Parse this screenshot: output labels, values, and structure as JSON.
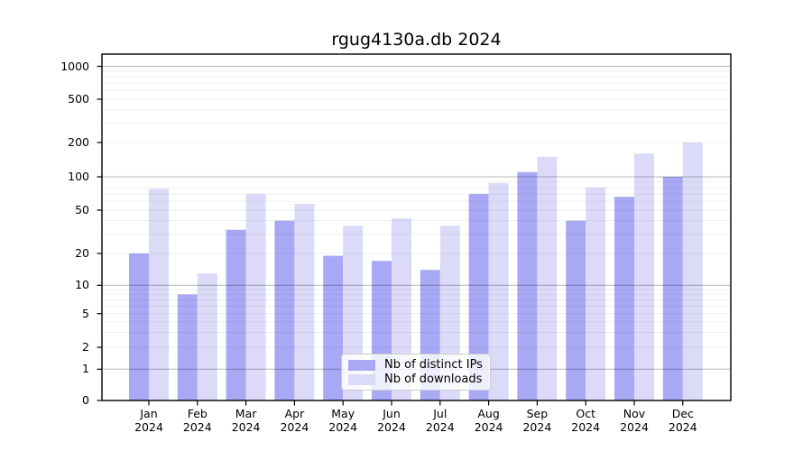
{
  "chart_data": {
    "type": "bar",
    "title": "rgug4130a.db 2024",
    "categories": [
      "Jan",
      "Feb",
      "Mar",
      "Apr",
      "May",
      "Jun",
      "Jul",
      "Aug",
      "Sep",
      "Oct",
      "Nov",
      "Dec"
    ],
    "x_year_label": "2024",
    "series": [
      {
        "name": "Nb of distinct IPs",
        "color": "#a8a8f5",
        "values": [
          20,
          8,
          33,
          40,
          19,
          17,
          14,
          70,
          110,
          40,
          66,
          100
        ]
      },
      {
        "name": "Nb of downloads",
        "color": "#dbdbf9",
        "values": [
          78,
          13,
          70,
          57,
          36,
          42,
          36,
          88,
          150,
          80,
          160,
          200
        ]
      }
    ],
    "y_axis": {
      "scale": "symlog-like",
      "ticks": [
        0,
        1,
        2,
        5,
        10,
        20,
        50,
        100,
        200,
        500,
        1000
      ],
      "tick_positions": [
        0,
        0.0903,
        0.1536,
        0.2508,
        0.3325,
        0.4245,
        0.5495,
        0.6458,
        0.7448,
        0.8698,
        0.9648
      ],
      "major_gridlines": [
        1,
        10,
        100,
        1000
      ],
      "grid": true
    },
    "legend_position": "lower center",
    "xlabel": "",
    "ylabel": ""
  },
  "colors": {
    "background": "#ffffff",
    "bar_distinct_ips": "#a8a8f5",
    "bar_downloads": "#dbdbf9",
    "grid_major": "rgba(0,0,0,0.26)",
    "grid_minor": "rgba(0,0,0,0.06)",
    "axis_border": "#000000",
    "text": "#000000"
  }
}
